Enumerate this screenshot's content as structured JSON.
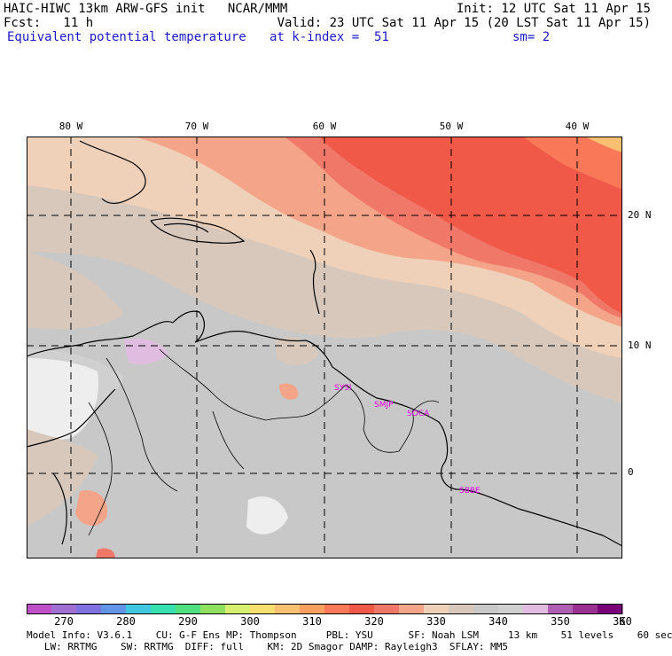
{
  "header": {
    "left1": "HAIC-HIWC 13km ARW-GFS init   NCAR/MMM",
    "left2": "Fcst:   11 h",
    "right1": "Init: 12 UTC Sat 11 Apr 15",
    "right2": "Valid: 23 UTC Sat 11 Apr 15 (20 LST Sat 11 Apr 15)",
    "field": "Equivalent potential temperature",
    "level": "at k-index =  51",
    "smooth": "sm= 2"
  },
  "map": {
    "lon_labels": [
      "80 W",
      "70 W",
      "60 W",
      "50 W",
      "40 W"
    ],
    "lat_labels": [
      "20 N",
      "10 N",
      "0"
    ],
    "stations": [
      "SYSI",
      "SMJP",
      "SOCA",
      "SBBE"
    ]
  },
  "colorbar": {
    "unit": "K",
    "labels": [
      "270",
      "280",
      "290",
      "300",
      "310",
      "320",
      "330",
      "340",
      "350",
      "360"
    ],
    "colors": [
      "#c050c8",
      "#a070d0",
      "#8070e0",
      "#5f94e6",
      "#40c8e0",
      "#38e0b0",
      "#50e080",
      "#90e060",
      "#d8f070",
      "#f8e070",
      "#f8c070",
      "#f8a060",
      "#f87858",
      "#f05848",
      "#f07868",
      "#f4a488",
      "#efd0b8",
      "#d8c8bc",
      "#c8c8c8",
      "#d0d0d0",
      "#e0bce0",
      "#b060b0",
      "#9a3090",
      "#7a007a"
    ],
    "palette_values": [
      266,
      270,
      274,
      278,
      282,
      286,
      290,
      294,
      298,
      302,
      306,
      310,
      314,
      318,
      322,
      326,
      330,
      334,
      338,
      342,
      346,
      350,
      354,
      358
    ]
  },
  "footer": {
    "line1": "Model Info: V3.6.1    CU: G-F Ens MP: Thompson     PBL: YSU      SF: Noah LSM     13 km    51 levels    60 sec",
    "line2": "   LW: RRTMG    SW: RRTMG  DIFF: full    KM: 2D Smagor DAMP: Rayleigh3  SFLAY: MM5"
  }
}
